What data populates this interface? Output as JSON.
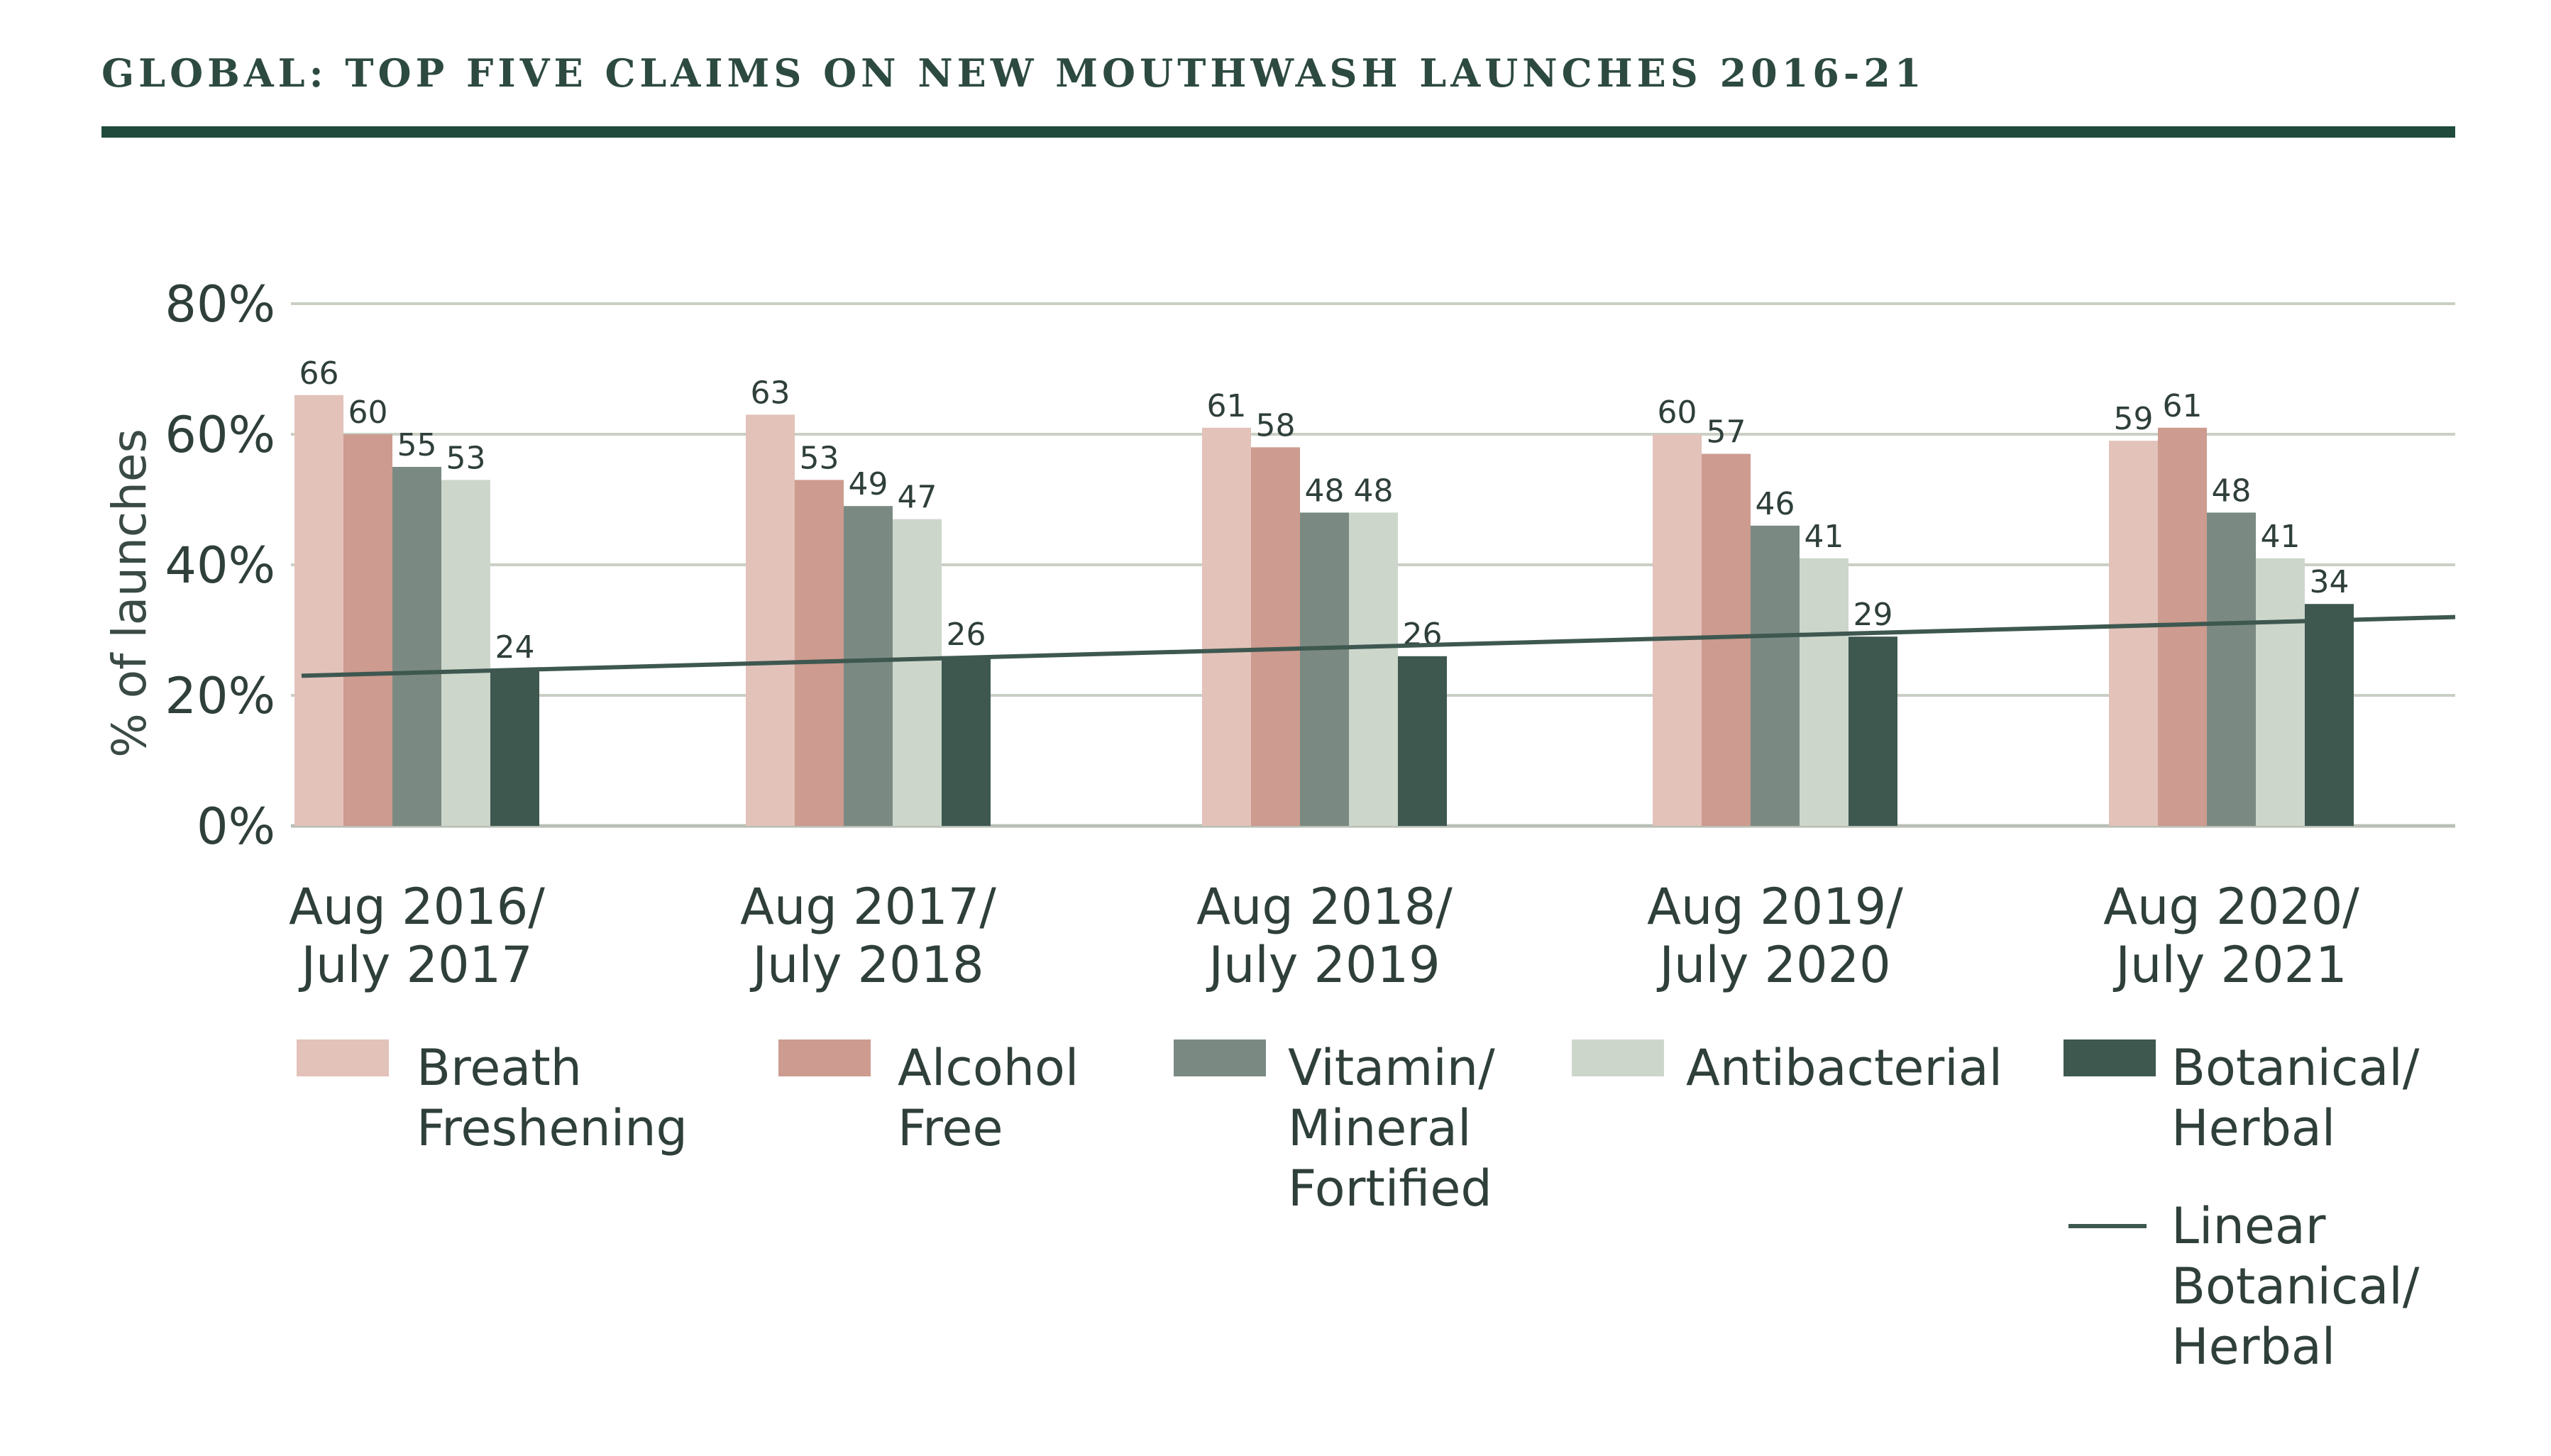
{
  "chart_data": {
    "type": "bar",
    "title": "GLOBAL: TOP FIVE CLAIMS ON NEW MOUTHWASH LAUNCHES 2016-21",
    "xlabel": "",
    "ylabel": "% of launches",
    "ylim": [
      0,
      80
    ],
    "yticks": [
      0,
      20,
      40,
      60,
      80
    ],
    "ytick_labels": [
      "0%",
      "20%",
      "40%",
      "60%",
      "80%"
    ],
    "grid": true,
    "legend_position": "bottom",
    "categories": [
      [
        "Aug 2016/",
        "July 2017"
      ],
      [
        "Aug 2017/",
        "July 2018"
      ],
      [
        "Aug 2018/",
        "July 2019"
      ],
      [
        "Aug 2019/",
        "July 2020"
      ],
      [
        "Aug 2020/",
        "July 2021"
      ]
    ],
    "series": [
      {
        "name": "Breath Freshening",
        "legend_lines": [
          "Breath",
          "Freshening"
        ],
        "color": "#e2c2b9",
        "values": [
          66,
          63,
          61,
          60,
          59
        ]
      },
      {
        "name": "Alcohol Free",
        "legend_lines": [
          "Alcohol",
          "Free"
        ],
        "color": "#cd9b8f",
        "values": [
          60,
          53,
          58,
          57,
          61
        ]
      },
      {
        "name": "Vitamin/ Mineral Fortified",
        "legend_lines": [
          "Vitamin/",
          "Mineral",
          "Fortified"
        ],
        "color": "#7a8a83",
        "values": [
          55,
          49,
          48,
          46,
          48
        ]
      },
      {
        "name": "Antibacterial",
        "legend_lines": [
          "Antibacterial"
        ],
        "color": "#cdd6cb",
        "values": [
          53,
          47,
          48,
          41,
          41
        ]
      },
      {
        "name": "Botanical/ Herbal",
        "legend_lines": [
          "Botanical/",
          "Herbal"
        ],
        "color": "#3e5850",
        "values": [
          24,
          26,
          26,
          29,
          34
        ]
      }
    ],
    "trendline": {
      "name": "Linear Botanical/ Herbal",
      "legend_lines": [
        "Linear",
        "Botanical/",
        "Herbal"
      ],
      "color": "#3e5850",
      "series": "Botanical/ Herbal",
      "start_value": 23,
      "end_value": 32
    },
    "colors": {
      "title": "#2d4a40",
      "rule": "#1f4a3c",
      "grid": "#c9cfc4",
      "axis": "#b9bfb5",
      "text": "#2f3f3a"
    }
  }
}
